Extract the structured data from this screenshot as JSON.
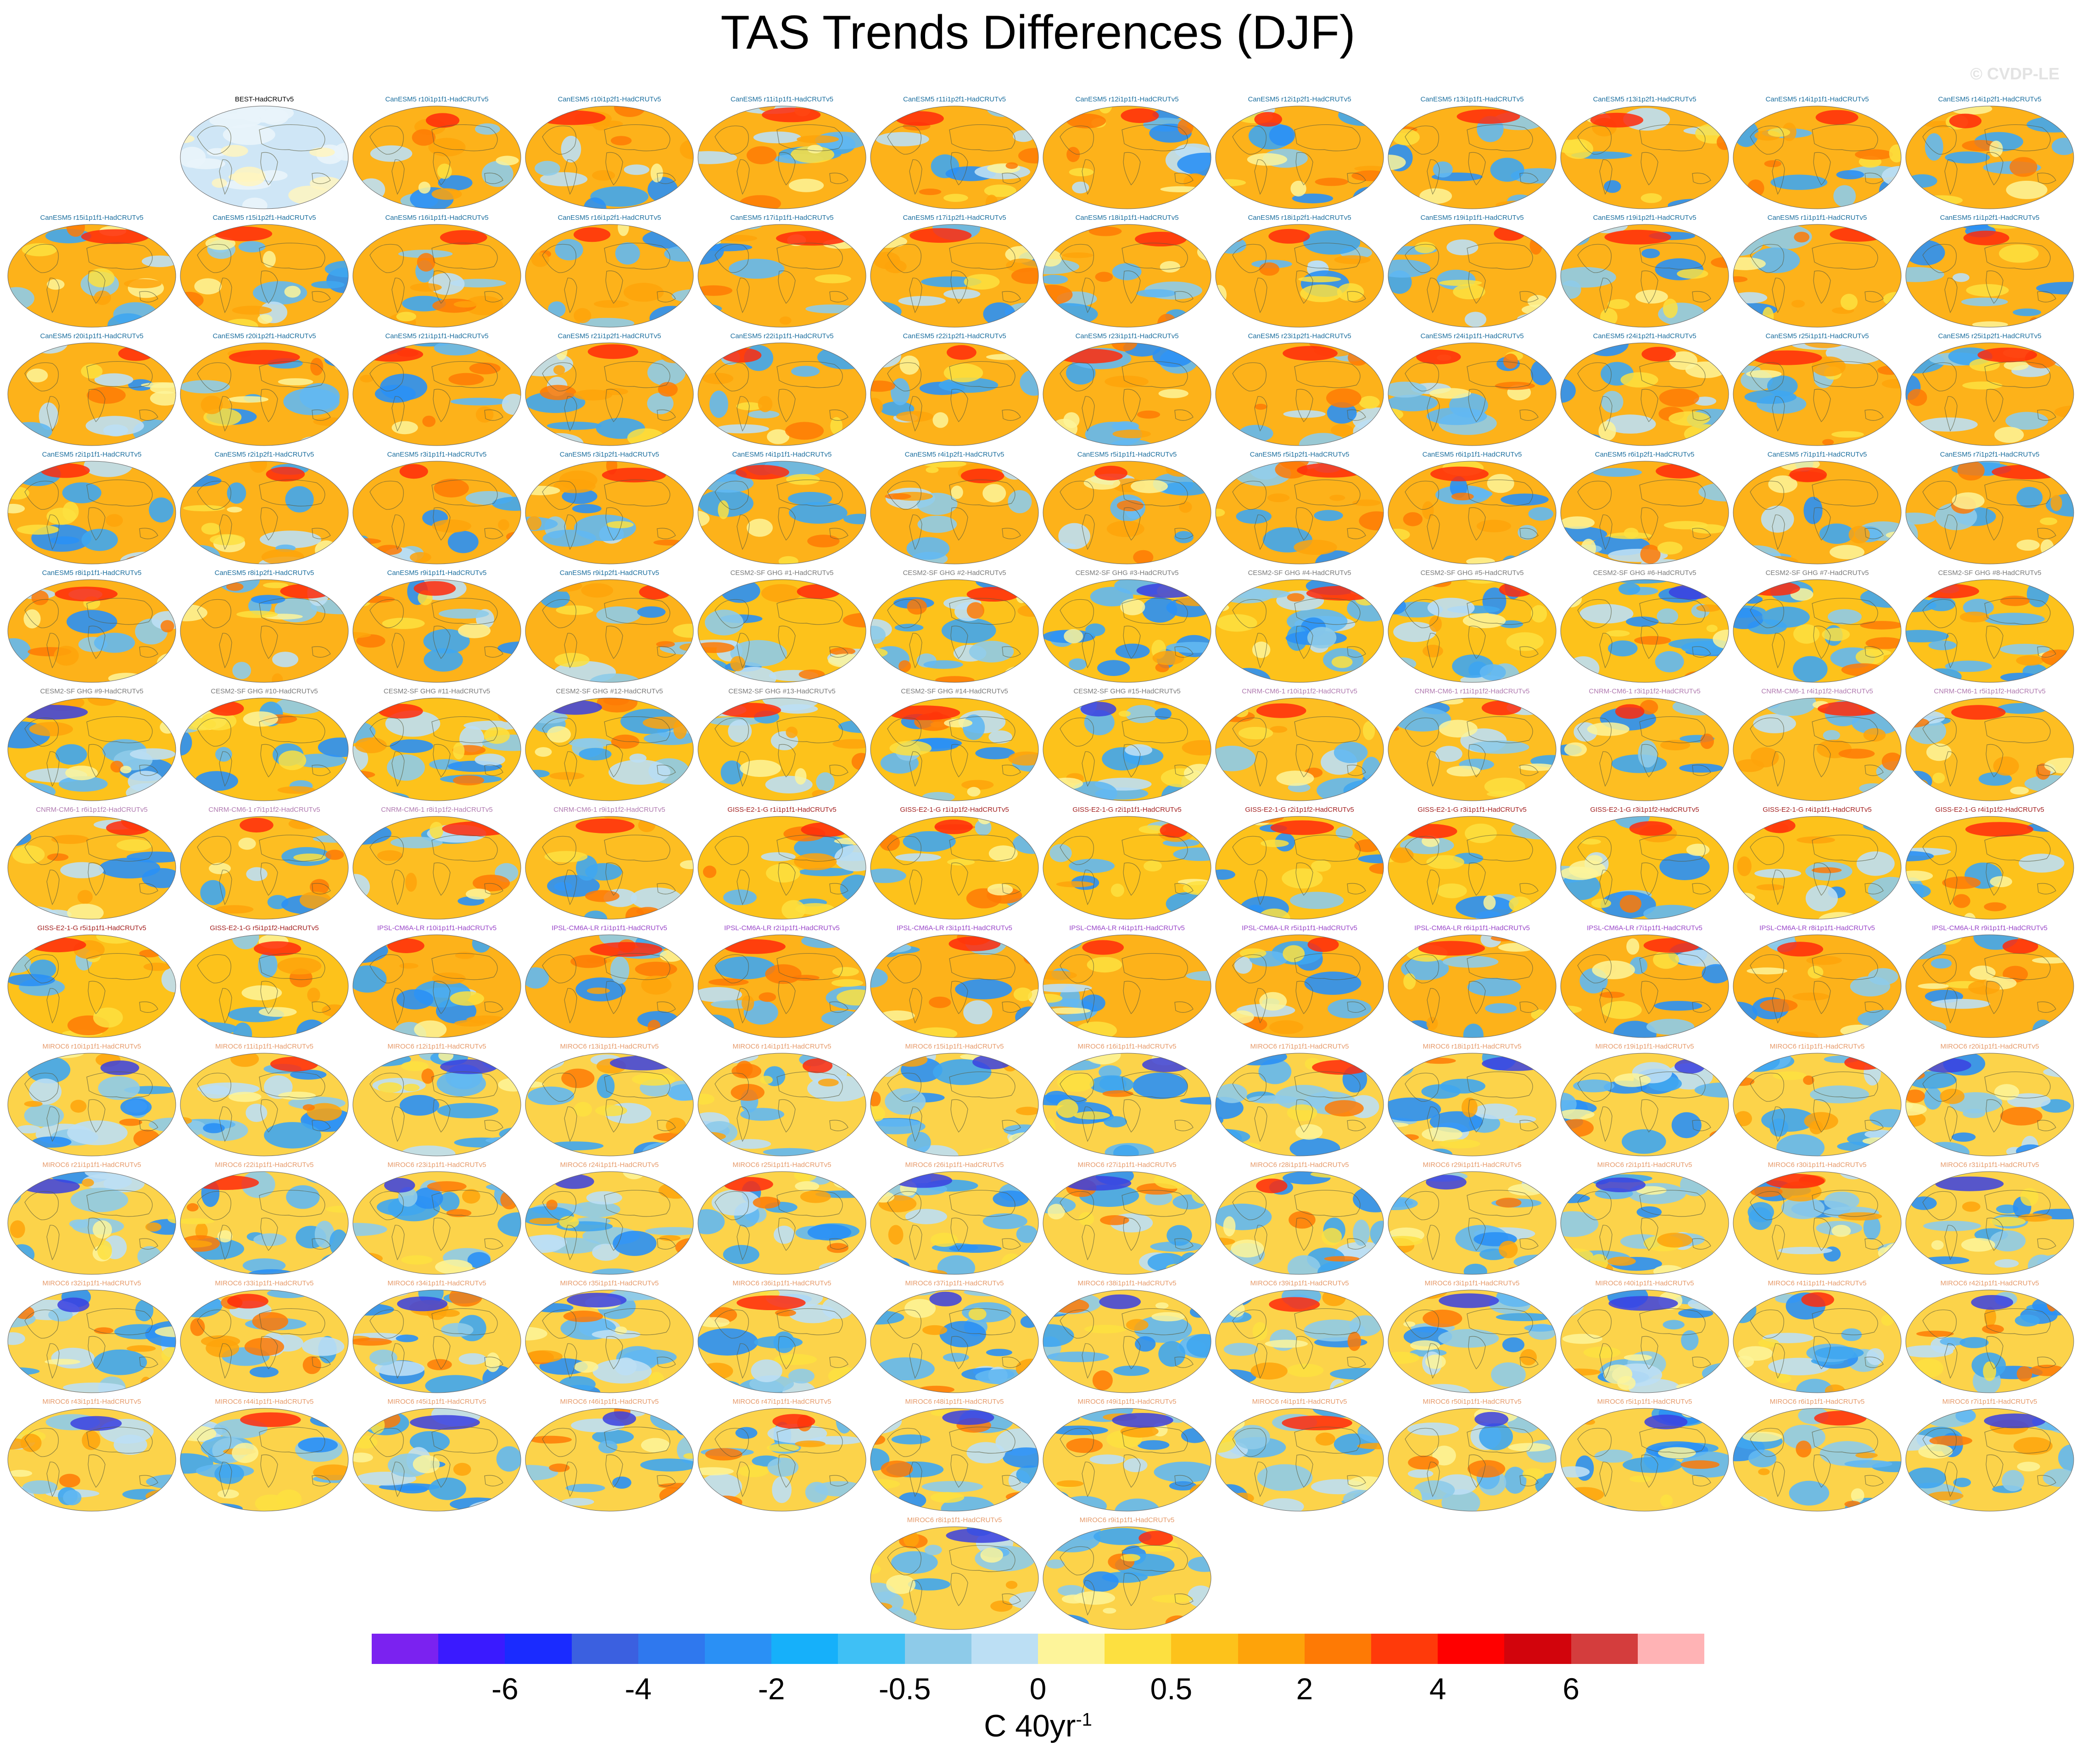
{
  "chart_data": {
    "type": "heatmap",
    "title": "TAS Trends Differences (DJF)",
    "watermark": "© CVDP-LE",
    "colorbar": {
      "units": "C 40yr",
      "units_superscript": "-1",
      "tick_labels": [
        "-6",
        "-4",
        "-2",
        "-0.5",
        "0",
        "0.5",
        "2",
        "4",
        "6"
      ],
      "colors": [
        "#7b22f0",
        "#3a1aff",
        "#1a2bff",
        "#3b60e0",
        "#2f78ee",
        "#2a90f5",
        "#16b0fa",
        "#3fc0f5",
        "#8ecbe9",
        "#bcdff4",
        "#fdf49a",
        "#fde040",
        "#fdc21b",
        "#fea30a",
        "#fe7a05",
        "#ff3a0a",
        "#ff0000",
        "#d2040c",
        "#d43d3d",
        "#ffb3b5"
      ]
    },
    "panels": [
      {
        "label": "BEST-HadCRUTv5",
        "group": "obs"
      },
      {
        "label": "CanESM5 r10i1p1f1-HadCRUTv5",
        "group": "canesm"
      },
      {
        "label": "CanESM5 r10i1p2f1-HadCRUTv5",
        "group": "canesm"
      },
      {
        "label": "CanESM5 r11i1p1f1-HadCRUTv5",
        "group": "canesm"
      },
      {
        "label": "CanESM5 r11i1p2f1-HadCRUTv5",
        "group": "canesm"
      },
      {
        "label": "CanESM5 r12i1p1f1-HadCRUTv5",
        "group": "canesm"
      },
      {
        "label": "CanESM5 r12i1p2f1-HadCRUTv5",
        "group": "canesm"
      },
      {
        "label": "CanESM5 r13i1p1f1-HadCRUTv5",
        "group": "canesm"
      },
      {
        "label": "CanESM5 r13i1p2f1-HadCRUTv5",
        "group": "canesm"
      },
      {
        "label": "CanESM5 r14i1p1f1-HadCRUTv5",
        "group": "canesm"
      },
      {
        "label": "CanESM5 r14i1p2f1-HadCRUTv5",
        "group": "canesm"
      },
      {
        "label": "CanESM5 r15i1p1f1-HadCRUTv5",
        "group": "canesm"
      },
      {
        "label": "CanESM5 r15i1p2f1-HadCRUTv5",
        "group": "canesm"
      },
      {
        "label": "CanESM5 r16i1p1f1-HadCRUTv5",
        "group": "canesm"
      },
      {
        "label": "CanESM5 r16i1p2f1-HadCRUTv5",
        "group": "canesm"
      },
      {
        "label": "CanESM5 r17i1p1f1-HadCRUTv5",
        "group": "canesm"
      },
      {
        "label": "CanESM5 r17i1p2f1-HadCRUTv5",
        "group": "canesm"
      },
      {
        "label": "CanESM5 r18i1p1f1-HadCRUTv5",
        "group": "canesm"
      },
      {
        "label": "CanESM5 r18i1p2f1-HadCRUTv5",
        "group": "canesm"
      },
      {
        "label": "CanESM5 r19i1p1f1-HadCRUTv5",
        "group": "canesm"
      },
      {
        "label": "CanESM5 r19i1p2f1-HadCRUTv5",
        "group": "canesm"
      },
      {
        "label": "CanESM5 r1i1p1f1-HadCRUTv5",
        "group": "canesm"
      },
      {
        "label": "CanESM5 r1i1p2f1-HadCRUTv5",
        "group": "canesm"
      },
      {
        "label": "CanESM5 r20i1p1f1-HadCRUTv5",
        "group": "canesm"
      },
      {
        "label": "CanESM5 r20i1p2f1-HadCRUTv5",
        "group": "canesm"
      },
      {
        "label": "CanESM5 r21i1p1f1-HadCRUTv5",
        "group": "canesm"
      },
      {
        "label": "CanESM5 r21i1p2f1-HadCRUTv5",
        "group": "canesm"
      },
      {
        "label": "CanESM5 r22i1p1f1-HadCRUTv5",
        "group": "canesm"
      },
      {
        "label": "CanESM5 r22i1p2f1-HadCRUTv5",
        "group": "canesm"
      },
      {
        "label": "CanESM5 r23i1p1f1-HadCRUTv5",
        "group": "canesm"
      },
      {
        "label": "CanESM5 r23i1p2f1-HadCRUTv5",
        "group": "canesm"
      },
      {
        "label": "CanESM5 r24i1p1f1-HadCRUTv5",
        "group": "canesm"
      },
      {
        "label": "CanESM5 r24i1p2f1-HadCRUTv5",
        "group": "canesm"
      },
      {
        "label": "CanESM5 r25i1p1f1-HadCRUTv5",
        "group": "canesm"
      },
      {
        "label": "CanESM5 r25i1p2f1-HadCRUTv5",
        "group": "canesm"
      },
      {
        "label": "CanESM5 r2i1p1f1-HadCRUTv5",
        "group": "canesm"
      },
      {
        "label": "CanESM5 r2i1p2f1-HadCRUTv5",
        "group": "canesm"
      },
      {
        "label": "CanESM5 r3i1p1f1-HadCRUTv5",
        "group": "canesm"
      },
      {
        "label": "CanESM5 r3i1p2f1-HadCRUTv5",
        "group": "canesm"
      },
      {
        "label": "CanESM5 r4i1p1f1-HadCRUTv5",
        "group": "canesm"
      },
      {
        "label": "CanESM5 r4i1p2f1-HadCRUTv5",
        "group": "canesm"
      },
      {
        "label": "CanESM5 r5i1p1f1-HadCRUTv5",
        "group": "canesm"
      },
      {
        "label": "CanESM5 r5i1p2f1-HadCRUTv5",
        "group": "canesm"
      },
      {
        "label": "CanESM5 r6i1p1f1-HadCRUTv5",
        "group": "canesm"
      },
      {
        "label": "CanESM5 r6i1p2f1-HadCRUTv5",
        "group": "canesm"
      },
      {
        "label": "CanESM5 r7i1p1f1-HadCRUTv5",
        "group": "canesm"
      },
      {
        "label": "CanESM5 r7i1p2f1-HadCRUTv5",
        "group": "canesm"
      },
      {
        "label": "CanESM5 r8i1p1f1-HadCRUTv5",
        "group": "canesm"
      },
      {
        "label": "CanESM5 r8i1p2f1-HadCRUTv5",
        "group": "canesm"
      },
      {
        "label": "CanESM5 r9i1p1f1-HadCRUTv5",
        "group": "canesm"
      },
      {
        "label": "CanESM5 r9i1p2f1-HadCRUTv5",
        "group": "canesm"
      },
      {
        "label": "CESM2-SF GHG #1-HadCRUTv5",
        "group": "cesm"
      },
      {
        "label": "CESM2-SF GHG #2-HadCRUTv5",
        "group": "cesm"
      },
      {
        "label": "CESM2-SF GHG #3-HadCRUTv5",
        "group": "cesm"
      },
      {
        "label": "CESM2-SF GHG #4-HadCRUTv5",
        "group": "cesm"
      },
      {
        "label": "CESM2-SF GHG #5-HadCRUTv5",
        "group": "cesm"
      },
      {
        "label": "CESM2-SF GHG #6-HadCRUTv5",
        "group": "cesm"
      },
      {
        "label": "CESM2-SF GHG #7-HadCRUTv5",
        "group": "cesm"
      },
      {
        "label": "CESM2-SF GHG #8-HadCRUTv5",
        "group": "cesm"
      },
      {
        "label": "CESM2-SF GHG #9-HadCRUTv5",
        "group": "cesm"
      },
      {
        "label": "CESM2-SF GHG #10-HadCRUTv5",
        "group": "cesm"
      },
      {
        "label": "CESM2-SF GHG #11-HadCRUTv5",
        "group": "cesm"
      },
      {
        "label": "CESM2-SF GHG #12-HadCRUTv5",
        "group": "cesm"
      },
      {
        "label": "CESM2-SF GHG #13-HadCRUTv5",
        "group": "cesm"
      },
      {
        "label": "CESM2-SF GHG #14-HadCRUTv5",
        "group": "cesm"
      },
      {
        "label": "CESM2-SF GHG #15-HadCRUTv5",
        "group": "cesm"
      },
      {
        "label": "CNRM-CM6-1 r10i1p1f2-HadCRUTv5",
        "group": "cnrm"
      },
      {
        "label": "CNRM-CM6-1 r11i1p1f2-HadCRUTv5",
        "group": "cnrm"
      },
      {
        "label": "CNRM-CM6-1 r3i1p1f2-HadCRUTv5",
        "group": "cnrm"
      },
      {
        "label": "CNRM-CM6-1 r4i1p1f2-HadCRUTv5",
        "group": "cnrm"
      },
      {
        "label": "CNRM-CM6-1 r5i1p1f2-HadCRUTv5",
        "group": "cnrm"
      },
      {
        "label": "CNRM-CM6-1 r6i1p1f2-HadCRUTv5",
        "group": "cnrm"
      },
      {
        "label": "CNRM-CM6-1 r7i1p1f2-HadCRUTv5",
        "group": "cnrm"
      },
      {
        "label": "CNRM-CM6-1 r8i1p1f2-HadCRUTv5",
        "group": "cnrm"
      },
      {
        "label": "CNRM-CM6-1 r9i1p1f2-HadCRUTv5",
        "group": "cnrm"
      },
      {
        "label": "GISS-E2-1-G r1i1p1f1-HadCRUTv5",
        "group": "giss"
      },
      {
        "label": "GISS-E2-1-G r1i1p1f2-HadCRUTv5",
        "group": "giss"
      },
      {
        "label": "GISS-E2-1-G r2i1p1f1-HadCRUTv5",
        "group": "giss"
      },
      {
        "label": "GISS-E2-1-G r2i1p1f2-HadCRUTv5",
        "group": "giss"
      },
      {
        "label": "GISS-E2-1-G r3i1p1f1-HadCRUTv5",
        "group": "giss"
      },
      {
        "label": "GISS-E2-1-G r3i1p1f2-HadCRUTv5",
        "group": "giss"
      },
      {
        "label": "GISS-E2-1-G r4i1p1f1-HadCRUTv5",
        "group": "giss"
      },
      {
        "label": "GISS-E2-1-G r4i1p1f2-HadCRUTv5",
        "group": "giss"
      },
      {
        "label": "GISS-E2-1-G r5i1p1f1-HadCRUTv5",
        "group": "giss"
      },
      {
        "label": "GISS-E2-1-G r5i1p1f2-HadCRUTv5",
        "group": "giss"
      },
      {
        "label": "IPSL-CM6A-LR r10i1p1f1-HadCRUTv5",
        "group": "ipsl"
      },
      {
        "label": "IPSL-CM6A-LR r1i1p1f1-HadCRUTv5",
        "group": "ipsl"
      },
      {
        "label": "IPSL-CM6A-LR r2i1p1f1-HadCRUTv5",
        "group": "ipsl"
      },
      {
        "label": "IPSL-CM6A-LR r3i1p1f1-HadCRUTv5",
        "group": "ipsl"
      },
      {
        "label": "IPSL-CM6A-LR r4i1p1f1-HadCRUTv5",
        "group": "ipsl"
      },
      {
        "label": "IPSL-CM6A-LR r5i1p1f1-HadCRUTv5",
        "group": "ipsl"
      },
      {
        "label": "IPSL-CM6A-LR r6i1p1f1-HadCRUTv5",
        "group": "ipsl"
      },
      {
        "label": "IPSL-CM6A-LR r7i1p1f1-HadCRUTv5",
        "group": "ipsl"
      },
      {
        "label": "IPSL-CM6A-LR r8i1p1f1-HadCRUTv5",
        "group": "ipsl"
      },
      {
        "label": "IPSL-CM6A-LR r9i1p1f1-HadCRUTv5",
        "group": "ipsl"
      },
      {
        "label": "MIROC6 r10i1p1f1-HadCRUTv5",
        "group": "miroc"
      },
      {
        "label": "MIROC6 r11i1p1f1-HadCRUTv5",
        "group": "miroc"
      },
      {
        "label": "MIROC6 r12i1p1f1-HadCRUTv5",
        "group": "miroc"
      },
      {
        "label": "MIROC6 r13i1p1f1-HadCRUTv5",
        "group": "miroc"
      },
      {
        "label": "MIROC6 r14i1p1f1-HadCRUTv5",
        "group": "miroc"
      },
      {
        "label": "MIROC6 r15i1p1f1-HadCRUTv5",
        "group": "miroc"
      },
      {
        "label": "MIROC6 r16i1p1f1-HadCRUTv5",
        "group": "miroc"
      },
      {
        "label": "MIROC6 r17i1p1f1-HadCRUTv5",
        "group": "miroc"
      },
      {
        "label": "MIROC6 r18i1p1f1-HadCRUTv5",
        "group": "miroc"
      },
      {
        "label": "MIROC6 r19i1p1f1-HadCRUTv5",
        "group": "miroc"
      },
      {
        "label": "MIROC6 r1i1p1f1-HadCRUTv5",
        "group": "miroc"
      },
      {
        "label": "MIROC6 r20i1p1f1-HadCRUTv5",
        "group": "miroc"
      },
      {
        "label": "MIROC6 r21i1p1f1-HadCRUTv5",
        "group": "miroc"
      },
      {
        "label": "MIROC6 r22i1p1f1-HadCRUTv5",
        "group": "miroc"
      },
      {
        "label": "MIROC6 r23i1p1f1-HadCRUTv5",
        "group": "miroc"
      },
      {
        "label": "MIROC6 r24i1p1f1-HadCRUTv5",
        "group": "miroc"
      },
      {
        "label": "MIROC6 r25i1p1f1-HadCRUTv5",
        "group": "miroc"
      },
      {
        "label": "MIROC6 r26i1p1f1-HadCRUTv5",
        "group": "miroc"
      },
      {
        "label": "MIROC6 r27i1p1f1-HadCRUTv5",
        "group": "miroc"
      },
      {
        "label": "MIROC6 r28i1p1f1-HadCRUTv5",
        "group": "miroc"
      },
      {
        "label": "MIROC6 r29i1p1f1-HadCRUTv5",
        "group": "miroc"
      },
      {
        "label": "MIROC6 r2i1p1f1-HadCRUTv5",
        "group": "miroc"
      },
      {
        "label": "MIROC6 r30i1p1f1-HadCRUTv5",
        "group": "miroc"
      },
      {
        "label": "MIROC6 r31i1p1f1-HadCRUTv5",
        "group": "miroc"
      },
      {
        "label": "MIROC6 r32i1p1f1-HadCRUTv5",
        "group": "miroc"
      },
      {
        "label": "MIROC6 r33i1p1f1-HadCRUTv5",
        "group": "miroc"
      },
      {
        "label": "MIROC6 r34i1p1f1-HadCRUTv5",
        "group": "miroc"
      },
      {
        "label": "MIROC6 r35i1p1f1-HadCRUTv5",
        "group": "miroc"
      },
      {
        "label": "MIROC6 r36i1p1f1-HadCRUTv5",
        "group": "miroc"
      },
      {
        "label": "MIROC6 r37i1p1f1-HadCRUTv5",
        "group": "miroc"
      },
      {
        "label": "MIROC6 r38i1p1f1-HadCRUTv5",
        "group": "miroc"
      },
      {
        "label": "MIROC6 r39i1p1f1-HadCRUTv5",
        "group": "miroc"
      },
      {
        "label": "MIROC6 r3i1p1f1-HadCRUTv5",
        "group": "miroc"
      },
      {
        "label": "MIROC6 r40i1p1f1-HadCRUTv5",
        "group": "miroc"
      },
      {
        "label": "MIROC6 r41i1p1f1-HadCRUTv5",
        "group": "miroc"
      },
      {
        "label": "MIROC6 r42i1p1f1-HadCRUTv5",
        "group": "miroc"
      },
      {
        "label": "MIROC6 r43i1p1f1-HadCRUTv5",
        "group": "miroc"
      },
      {
        "label": "MIROC6 r44i1p1f1-HadCRUTv5",
        "group": "miroc"
      },
      {
        "label": "MIROC6 r45i1p1f1-HadCRUTv5",
        "group": "miroc"
      },
      {
        "label": "MIROC6 r46i1p1f1-HadCRUTv5",
        "group": "miroc"
      },
      {
        "label": "MIROC6 r47i1p1f1-HadCRUTv5",
        "group": "miroc"
      },
      {
        "label": "MIROC6 r48i1p1f1-HadCRUTv5",
        "group": "miroc"
      },
      {
        "label": "MIROC6 r49i1p1f1-HadCRUTv5",
        "group": "miroc"
      },
      {
        "label": "MIROC6 r4i1p1f1-HadCRUTv5",
        "group": "miroc"
      },
      {
        "label": "MIROC6 r50i1p1f1-HadCRUTv5",
        "group": "miroc"
      },
      {
        "label": "MIROC6 r5i1p1f1-HadCRUTv5",
        "group": "miroc"
      },
      {
        "label": "MIROC6 r6i1p1f1-HadCRUTv5",
        "group": "miroc"
      },
      {
        "label": "MIROC6 r7i1p1f1-HadCRUTv5",
        "group": "miroc"
      },
      {
        "label": "MIROC6 r8i1p1f1-HadCRUTv5",
        "group": "miroc"
      },
      {
        "label": "MIROC6 r9i1p1f1-HadCRUTv5",
        "group": "miroc"
      }
    ],
    "group_colors": {
      "obs": "#000000",
      "canesm": "#1b6e9e",
      "cesm": "#7a7a7a",
      "cnrm": "#b07ab0",
      "giss": "#a32020",
      "ipsl": "#9a47c9",
      "miroc": "#e69a6a"
    }
  }
}
